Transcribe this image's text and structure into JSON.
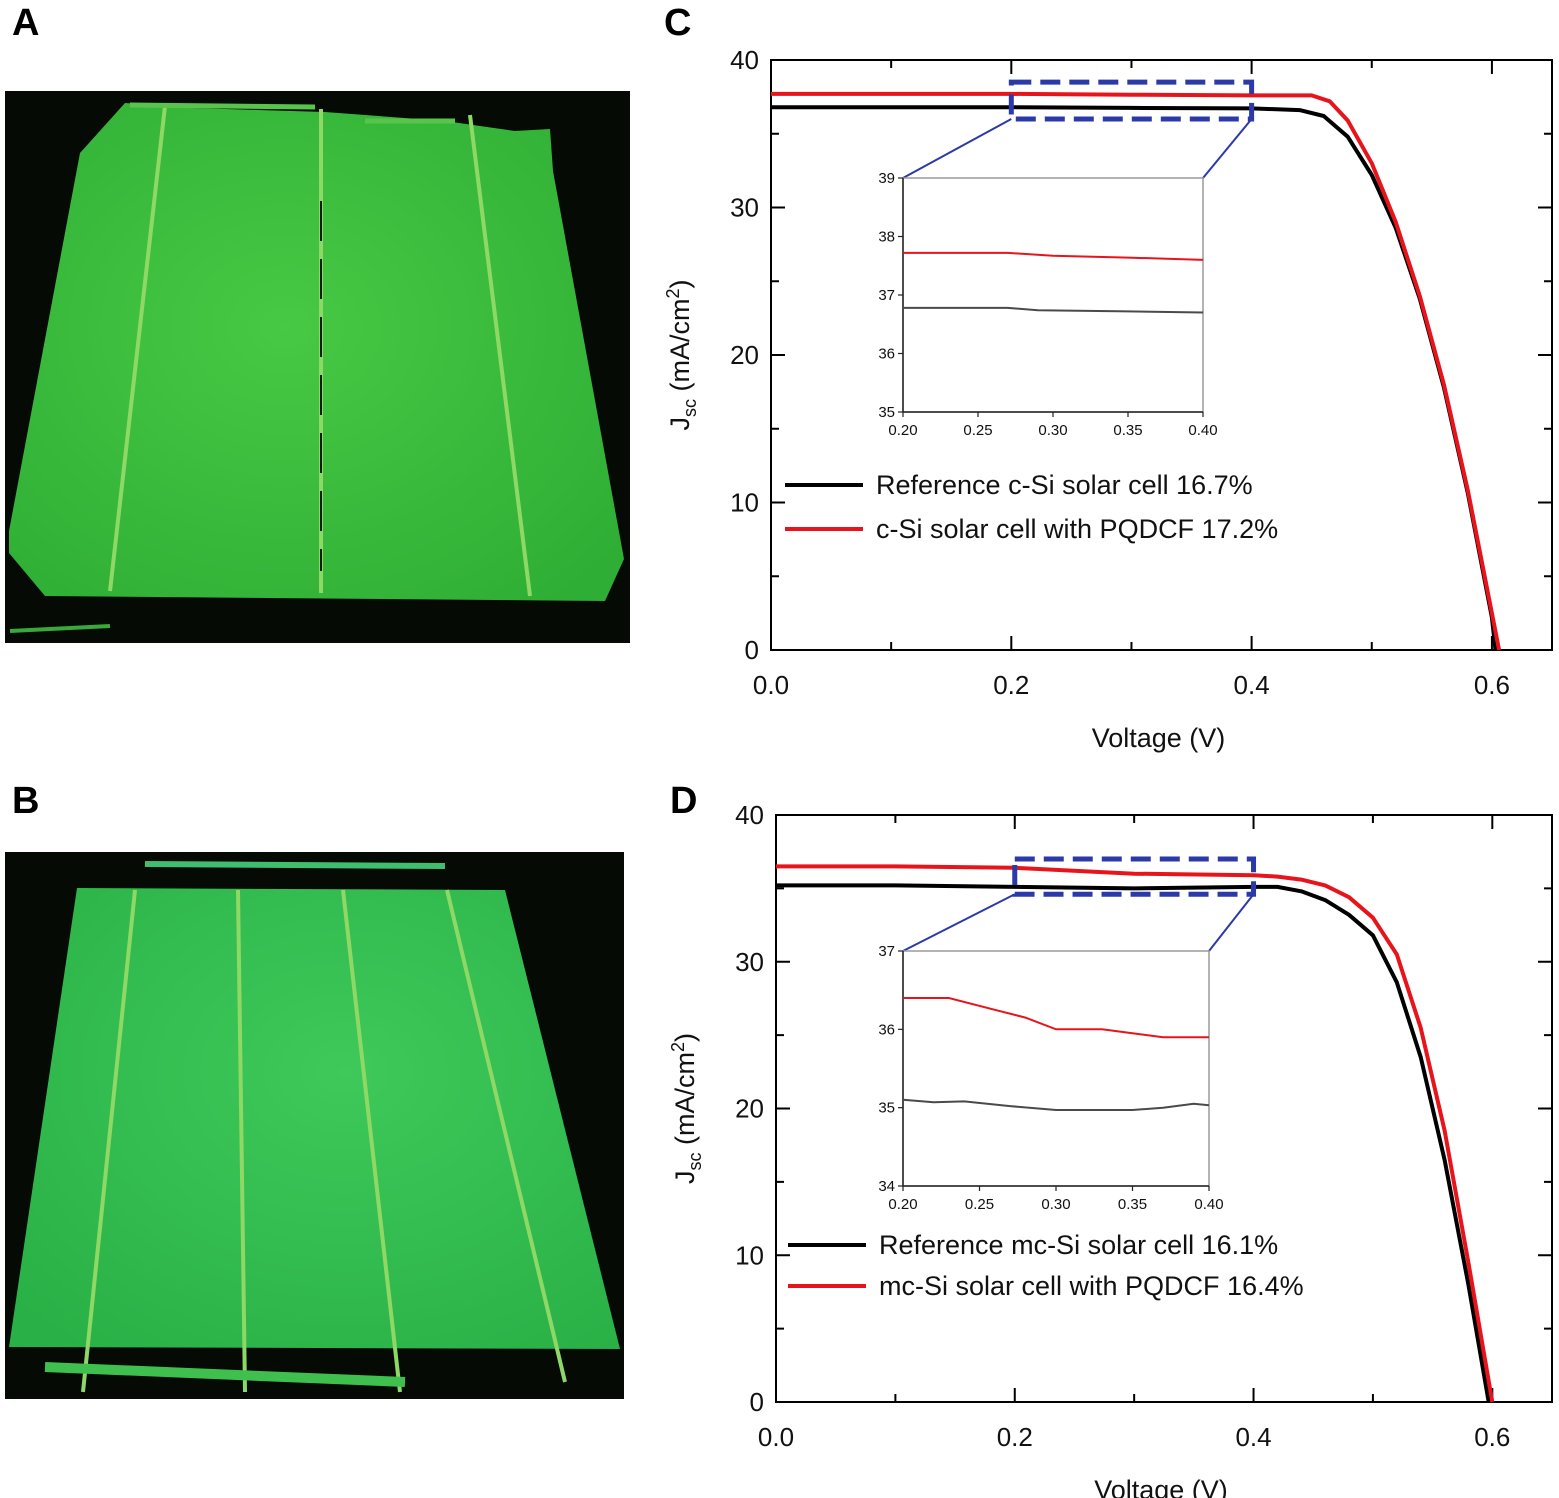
{
  "panels": {
    "a_label": "A",
    "b_label": "B",
    "c_label": "C",
    "d_label": "D"
  },
  "photo_colors": {
    "background": "#050a04",
    "panel_a_cell": "#3cc23c",
    "panel_b_cell": "#31bc50",
    "busbar": "#9be06a"
  },
  "chart_data": [
    {
      "id": "C",
      "type": "line",
      "xlabel": "Voltage (V)",
      "ylabel_main": "J",
      "ylabel_sub": "sc",
      "ylabel_rest": " (mA/cm",
      "ylabel_sup": "2",
      "ylabel_end": ")",
      "xlim": [
        0,
        0.65
      ],
      "ylim": [
        0,
        40
      ],
      "xticks": [
        0.0,
        0.2,
        0.4,
        0.6
      ],
      "xtick_labels": [
        "0.0",
        "0.2",
        "0.4",
        "0.6"
      ],
      "yticks": [
        0,
        10,
        20,
        30,
        40
      ],
      "ytick_labels": [
        "0",
        "10",
        "20",
        "30",
        "40"
      ],
      "legend": [
        {
          "label": "Reference c-Si solar cell 16.7%",
          "color": "#000000"
        },
        {
          "label": "c-Si solar cell with PQDCF 17.2%",
          "color": "#e8141c"
        }
      ],
      "series": [
        {
          "name": "Reference c-Si solar cell 16.7%",
          "color": "#000000",
          "x": [
            0,
            0.1,
            0.2,
            0.3,
            0.4,
            0.44,
            0.46,
            0.48,
            0.5,
            0.52,
            0.54,
            0.56,
            0.58,
            0.6,
            0.603
          ],
          "y": [
            36.8,
            36.8,
            36.8,
            36.75,
            36.72,
            36.6,
            36.2,
            34.8,
            32.2,
            28.6,
            23.8,
            17.8,
            10.6,
            2.2,
            0
          ]
        },
        {
          "name": "c-Si solar cell with PQDCF 17.2%",
          "color": "#e8141c",
          "x": [
            0,
            0.1,
            0.2,
            0.3,
            0.4,
            0.45,
            0.465,
            0.48,
            0.5,
            0.52,
            0.54,
            0.56,
            0.58,
            0.6,
            0.606
          ],
          "y": [
            37.7,
            37.7,
            37.7,
            37.65,
            37.6,
            37.6,
            37.2,
            35.9,
            33.0,
            29.0,
            24.0,
            18.0,
            10.8,
            2.5,
            0
          ]
        }
      ],
      "zoom_box": {
        "x": [
          0.2,
          0.4
        ],
        "y": [
          36.0,
          38.5
        ],
        "color": "#2b3aa8"
      },
      "inset": {
        "xlim": [
          0.2,
          0.4
        ],
        "ylim": [
          35,
          39
        ],
        "xticks": [
          0.2,
          0.25,
          0.3,
          0.35,
          0.4
        ],
        "xtick_labels": [
          "0.20",
          "0.25",
          "0.30",
          "0.35",
          "0.40"
        ],
        "yticks": [
          35,
          36,
          37,
          38,
          39
        ],
        "ytick_labels": [
          "35",
          "36",
          "37",
          "38",
          "39"
        ],
        "series": [
          {
            "color": "#e8141c",
            "x": [
              0.2,
              0.27,
              0.3,
              0.35,
              0.4
            ],
            "y": [
              37.72,
              37.72,
              37.67,
              37.64,
              37.6
            ]
          },
          {
            "color": "#4a4a4a",
            "x": [
              0.2,
              0.27,
              0.29,
              0.35,
              0.4
            ],
            "y": [
              36.78,
              36.78,
              36.74,
              36.72,
              36.7
            ]
          }
        ]
      }
    },
    {
      "id": "D",
      "type": "line",
      "xlabel": "Voltage (V)",
      "ylabel_main": "J",
      "ylabel_sub": "sc",
      "ylabel_rest": " (mA/cm",
      "ylabel_sup": "2",
      "ylabel_end": ")",
      "xlim": [
        0,
        0.65
      ],
      "ylim": [
        0,
        40
      ],
      "xticks": [
        0.0,
        0.2,
        0.4,
        0.6
      ],
      "xtick_labels": [
        "0.0",
        "0.2",
        "0.4",
        "0.6"
      ],
      "yticks": [
        0,
        10,
        20,
        30,
        40
      ],
      "ytick_labels": [
        "0",
        "10",
        "20",
        "30",
        "40"
      ],
      "legend": [
        {
          "label": "Reference mc-Si solar cell 16.1%",
          "color": "#000000"
        },
        {
          "label": "mc-Si solar cell with PQDCF 16.4%",
          "color": "#e8141c"
        }
      ],
      "series": [
        {
          "name": "Reference mc-Si solar cell 16.1%",
          "color": "#000000",
          "x": [
            0,
            0.1,
            0.2,
            0.3,
            0.4,
            0.42,
            0.44,
            0.46,
            0.48,
            0.5,
            0.52,
            0.54,
            0.56,
            0.58,
            0.597
          ],
          "y": [
            35.2,
            35.2,
            35.1,
            35.0,
            35.1,
            35.1,
            34.8,
            34.2,
            33.2,
            31.8,
            28.6,
            23.5,
            16.5,
            8.0,
            0
          ]
        },
        {
          "name": "mc-Si solar cell with PQDCF 16.4%",
          "color": "#e8141c",
          "x": [
            0,
            0.1,
            0.2,
            0.3,
            0.4,
            0.42,
            0.44,
            0.46,
            0.48,
            0.5,
            0.52,
            0.54,
            0.56,
            0.58,
            0.6
          ],
          "y": [
            36.5,
            36.5,
            36.4,
            36.0,
            35.9,
            35.8,
            35.6,
            35.2,
            34.4,
            33.0,
            30.5,
            25.5,
            18.5,
            9.5,
            0
          ]
        }
      ],
      "zoom_box": {
        "x": [
          0.2,
          0.4
        ],
        "y": [
          34.6,
          37.0
        ],
        "color": "#2b3aa8"
      },
      "inset": {
        "xlim": [
          0.2,
          0.4
        ],
        "ylim": [
          34,
          37
        ],
        "xticks": [
          0.2,
          0.25,
          0.3,
          0.35,
          0.4
        ],
        "xtick_labels": [
          "0.20",
          "0.25",
          "0.30",
          "0.35",
          "0.40"
        ],
        "yticks": [
          34,
          35,
          36,
          37
        ],
        "ytick_labels": [
          "34",
          "35",
          "36",
          "37"
        ],
        "series": [
          {
            "color": "#e8141c",
            "x": [
              0.2,
              0.23,
              0.26,
              0.28,
              0.3,
              0.33,
              0.35,
              0.37,
              0.4
            ],
            "y": [
              36.4,
              36.4,
              36.25,
              36.15,
              36.0,
              36.0,
              35.95,
              35.9,
              35.9
            ]
          },
          {
            "color": "#4a4a4a",
            "x": [
              0.2,
              0.22,
              0.24,
              0.27,
              0.3,
              0.33,
              0.35,
              0.37,
              0.39,
              0.4
            ],
            "y": [
              35.1,
              35.07,
              35.08,
              35.02,
              34.97,
              34.97,
              34.97,
              35.0,
              35.05,
              35.03
            ]
          }
        ]
      }
    }
  ]
}
